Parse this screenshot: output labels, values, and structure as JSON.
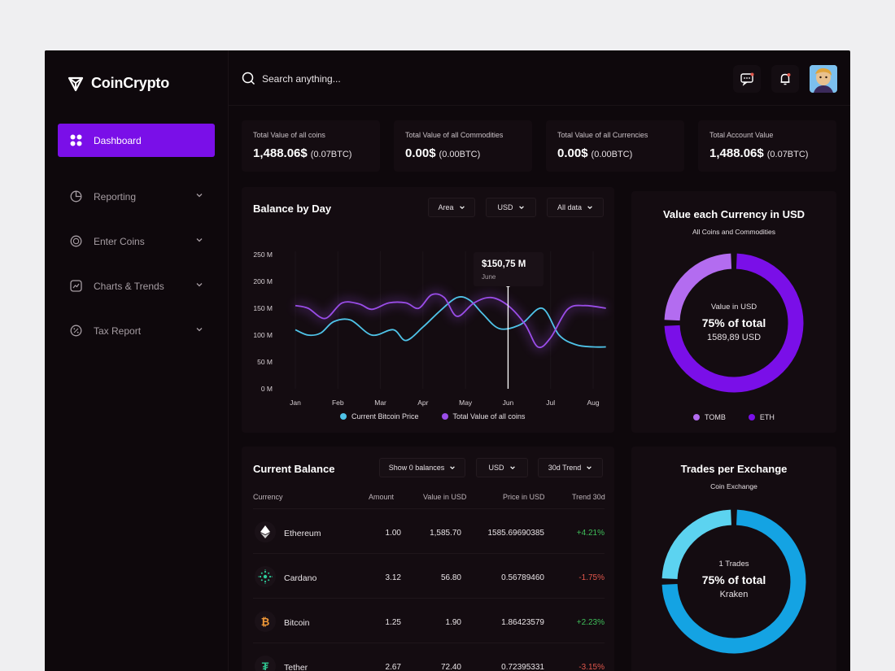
{
  "app": {
    "name": "CoinCrypto"
  },
  "search": {
    "placeholder": "Search anything..."
  },
  "sidebar": {
    "items": [
      {
        "label": "Dashboard",
        "icon": "grid-icon",
        "active": true
      },
      {
        "label": "Reporting",
        "icon": "pie-icon"
      },
      {
        "label": "Enter Coins",
        "icon": "coin-icon"
      },
      {
        "label": "Charts & Trends",
        "icon": "trend-icon"
      },
      {
        "label": "Tax Report",
        "icon": "percent-icon"
      }
    ]
  },
  "stats": [
    {
      "title": "Total Value of all coins",
      "value": "1,488.06$",
      "sub": "(0.07BTC)"
    },
    {
      "title": "Total Value of all Commodities",
      "value": "0.00$",
      "sub": "(0.00BTC)"
    },
    {
      "title": "Total Value of all Currencies",
      "value": "0.00$",
      "sub": "(0.00BTC)"
    },
    {
      "title": "Total Account Value",
      "value": "1,488.06$",
      "sub": "(0.07BTC)"
    }
  ],
  "balance_chart": {
    "title": "Balance by Day",
    "filters": [
      "Area",
      "USD",
      "All data"
    ],
    "tooltip": {
      "value": "$150,75 M",
      "label": "June"
    },
    "legend": [
      "Current Bitcoin Price",
      "Total Value of all coins"
    ]
  },
  "chart_data": {
    "type": "line",
    "categories": [
      "Jan",
      "Feb",
      "Mar",
      "Apr",
      "May",
      "Jun",
      "Jul",
      "Aug"
    ],
    "yticks": [
      "250 M",
      "200 M",
      "150 M",
      "100 M",
      "50 M",
      "0 M"
    ],
    "ylim": [
      0,
      250
    ],
    "series": [
      {
        "name": "Current Bitcoin Price",
        "color": "#4fc3e8",
        "points": [
          [
            0,
            110
          ],
          [
            0.3,
            100
          ],
          [
            0.6,
            104
          ],
          [
            0.9,
            125
          ],
          [
            1.3,
            128
          ],
          [
            1.8,
            100
          ],
          [
            2.3,
            110
          ],
          [
            2.6,
            90
          ],
          [
            3.0,
            115
          ],
          [
            3.4,
            145
          ],
          [
            3.8,
            170
          ],
          [
            4.1,
            165
          ],
          [
            4.4,
            140
          ],
          [
            4.8,
            112
          ],
          [
            5.3,
            120
          ],
          [
            5.8,
            150
          ],
          [
            6.2,
            100
          ],
          [
            6.6,
            82
          ],
          [
            7.0,
            78
          ],
          [
            7.3,
            78
          ]
        ]
      },
      {
        "name": "Total Value of all coins",
        "color": "#9a4de8",
        "points": [
          [
            0,
            155
          ],
          [
            0.3,
            150
          ],
          [
            0.7,
            131
          ],
          [
            1.1,
            160
          ],
          [
            1.5,
            158
          ],
          [
            1.8,
            148
          ],
          [
            2.2,
            160
          ],
          [
            2.6,
            160
          ],
          [
            2.9,
            150
          ],
          [
            3.2,
            175
          ],
          [
            3.5,
            170
          ],
          [
            3.8,
            135
          ],
          [
            4.2,
            160
          ],
          [
            4.6,
            170
          ],
          [
            5.0,
            155
          ],
          [
            5.4,
            120
          ],
          [
            5.7,
            78
          ],
          [
            6.0,
            95
          ],
          [
            6.4,
            148
          ],
          [
            6.8,
            155
          ],
          [
            7.3,
            150
          ]
        ]
      }
    ],
    "highlight_x": 5
  },
  "currency_donut": {
    "title": "Value each Currency in USD",
    "subtitle": "All Coins and Commodities",
    "center_label": "Value in USD",
    "center_pct": "75% of total",
    "center_value": "1589,89 USD",
    "legend": [
      {
        "name": "TOMB",
        "color": "#b36cf0"
      },
      {
        "name": "ETH",
        "color": "#7a0fe8"
      }
    ],
    "segments": [
      {
        "name": "TOMB",
        "fraction": 0.25
      },
      {
        "name": "ETH",
        "fraction": 0.75
      }
    ]
  },
  "current_balance": {
    "title": "Current Balance",
    "filters": [
      "Show 0 balances",
      "USD",
      "30d Trend"
    ],
    "columns": [
      "Currency",
      "Amount",
      "Value in USD",
      "Price in USD",
      "Trend 30d"
    ],
    "rows": [
      {
        "name": "Ethereum",
        "amount": "1.00",
        "value": "1,585.70",
        "price": "1585.69690385",
        "trend": "+4.21%",
        "dir": "pos",
        "icon": "ethereum-icon"
      },
      {
        "name": "Cardano",
        "amount": "3.12",
        "value": "56.80",
        "price": "0.56789460",
        "trend": "-1.75%",
        "dir": "neg",
        "icon": "cardano-icon"
      },
      {
        "name": "Bitcoin",
        "amount": "1.25",
        "value": "1.90",
        "price": "1.86423579",
        "trend": "+2.23%",
        "dir": "pos",
        "icon": "bitcoin-icon"
      },
      {
        "name": "Tether",
        "amount": "2.67",
        "value": "72.40",
        "price": "0.72395331",
        "trend": "-3.15%",
        "dir": "neg",
        "icon": "tether-icon"
      }
    ]
  },
  "exchange_donut": {
    "title": "Trades per Exchange",
    "subtitle": "Coin Exchange",
    "center_label": "1 Trades",
    "center_pct": "75% of total",
    "center_value": "Kraken",
    "colors": [
      "#5cd3f0",
      "#14a3e3"
    ],
    "segments": [
      {
        "fraction": 0.25
      },
      {
        "fraction": 0.75
      }
    ]
  }
}
